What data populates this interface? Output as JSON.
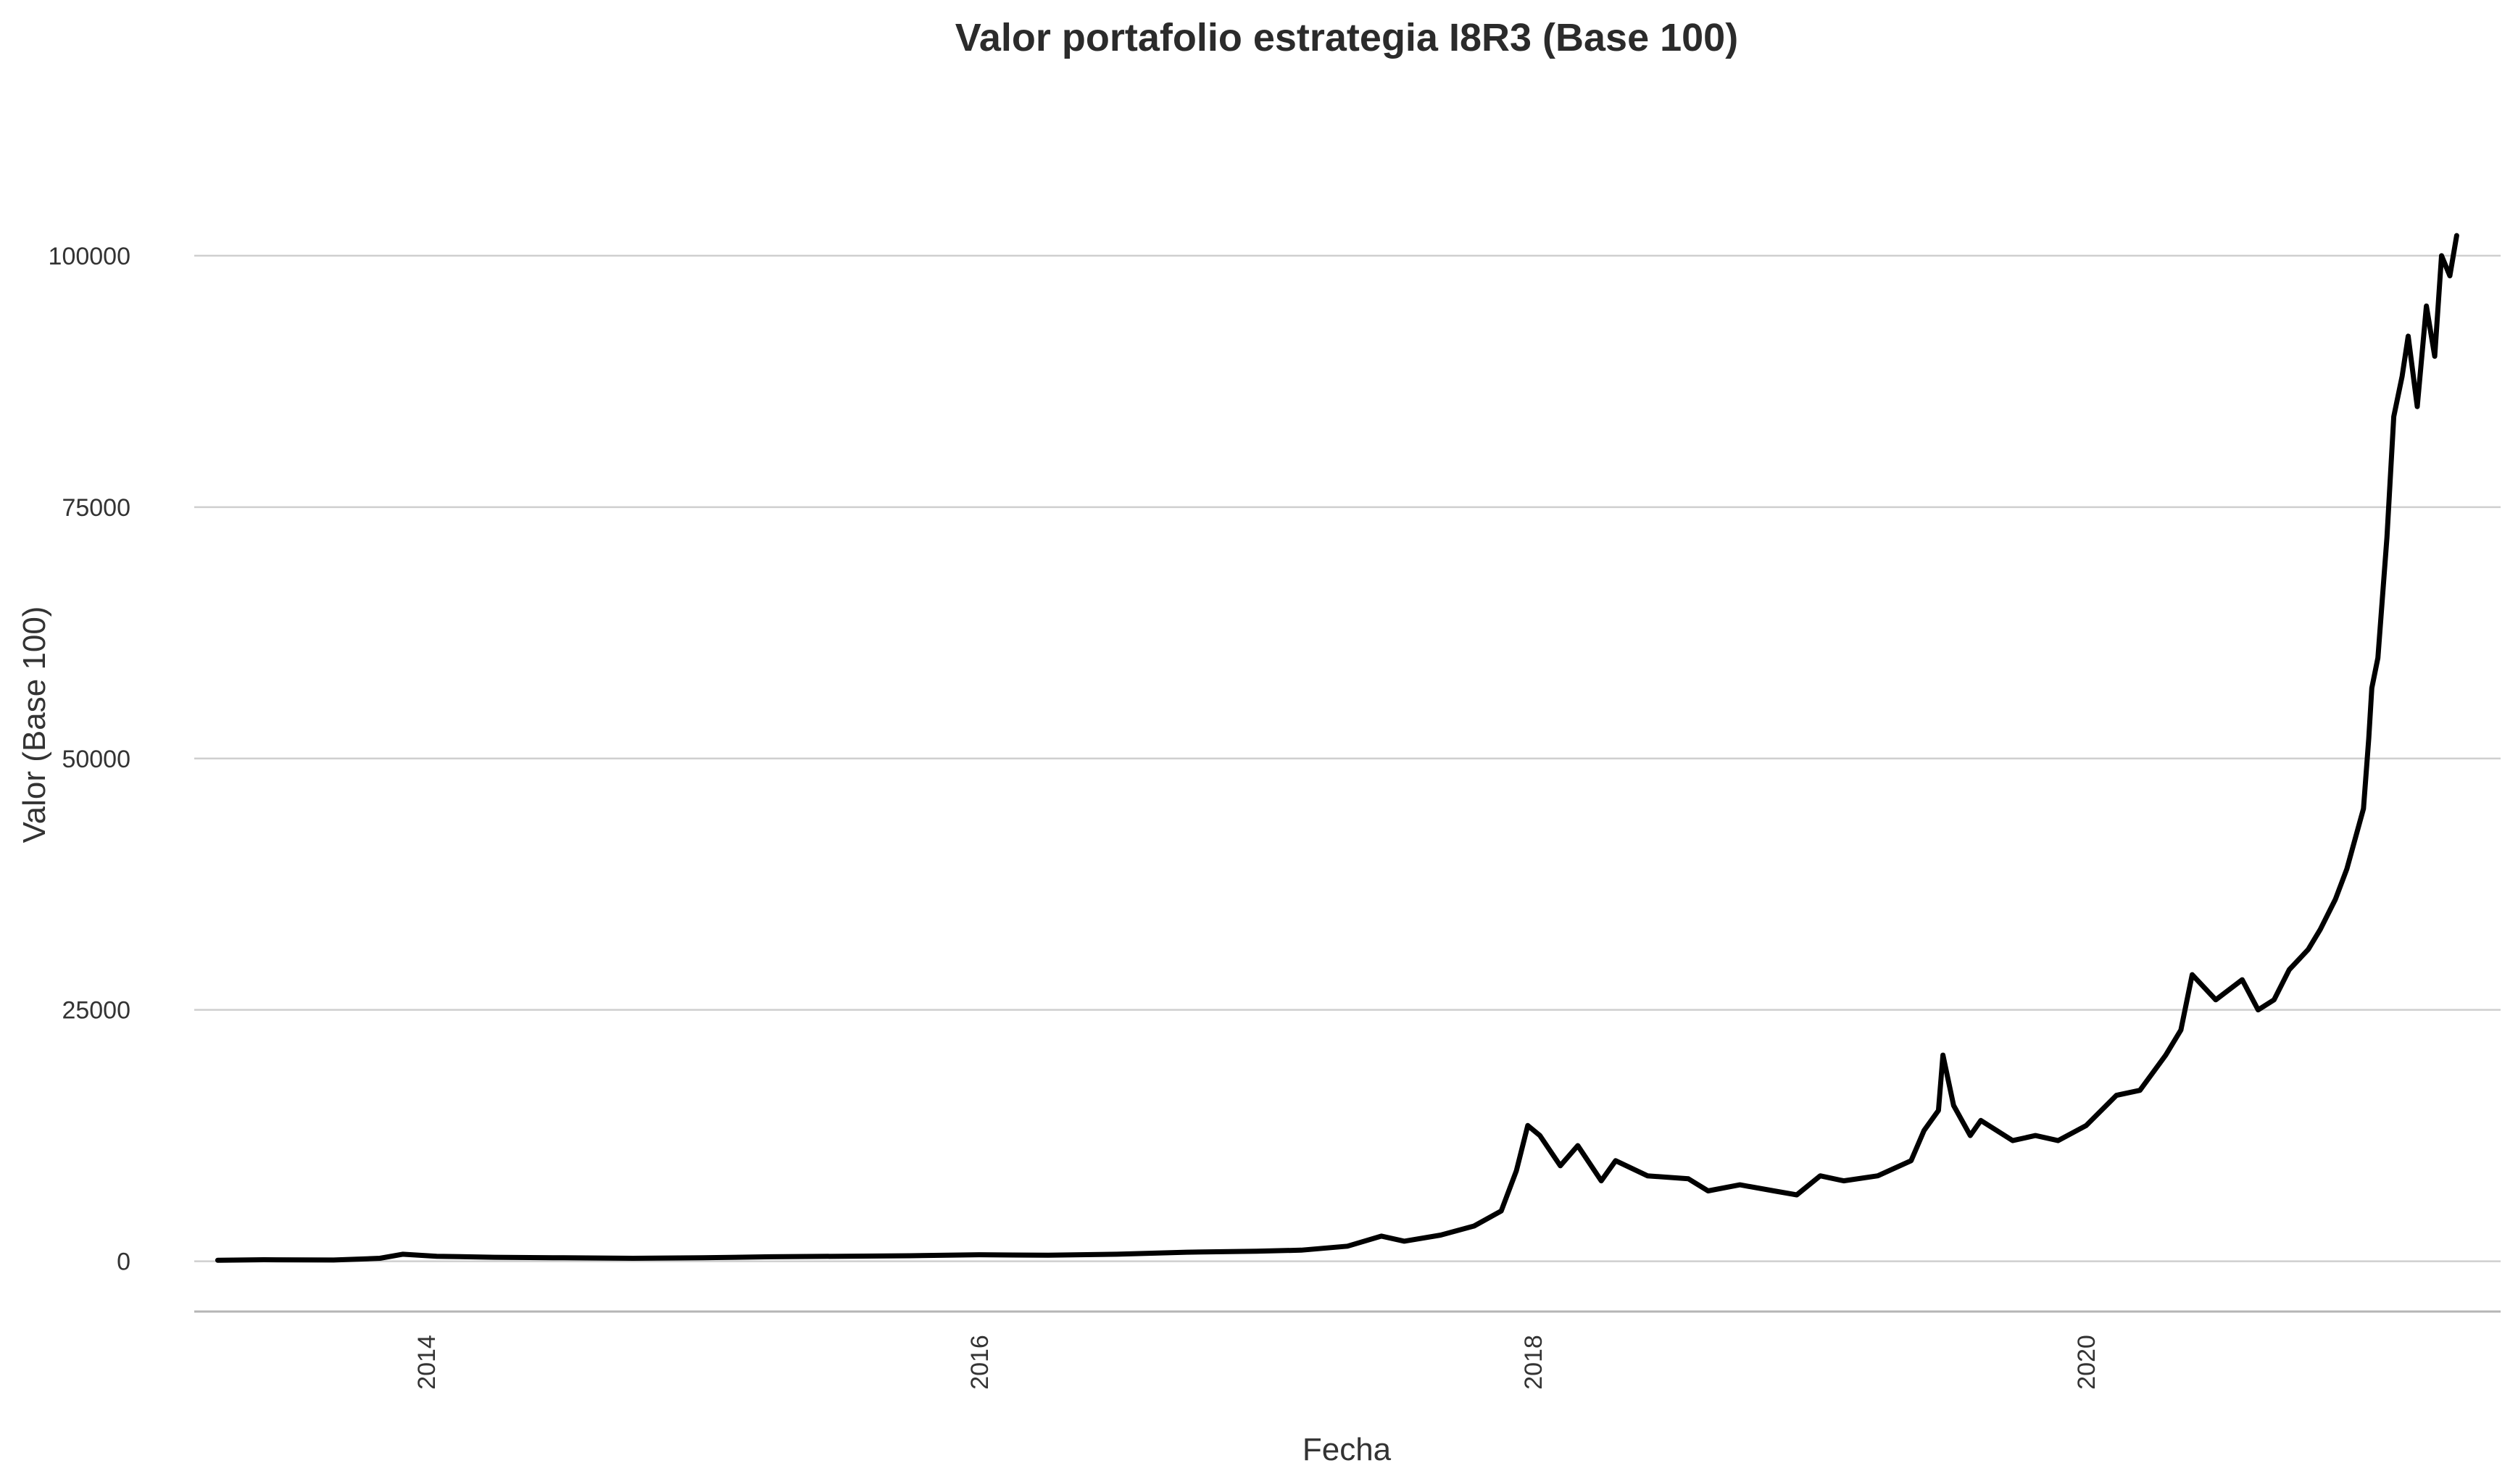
{
  "chart_data": {
    "type": "line",
    "title": "Valor portafolio estrategia I8R3 (Base 100)",
    "xlabel": "Fecha",
    "ylabel": "Valor (Base 100)",
    "xlim": [
      "2013-03-01",
      "2021-07-01"
    ],
    "ylim": [
      -5000,
      109000
    ],
    "y_ticks": [
      0,
      25000,
      50000,
      75000,
      100000
    ],
    "y_tick_labels": [
      "0",
      "25000",
      "50000",
      "75000",
      "100000"
    ],
    "x_ticks": [
      "2014-01-01",
      "2016-01-01",
      "2018-01-01",
      "2020-01-01"
    ],
    "x_tick_labels": [
      "2014",
      "2016",
      "2018",
      "2020"
    ],
    "grid": "horizontal major",
    "legend": "none",
    "series": [
      {
        "color": "#000000",
        "x": [
          "2013-04-01",
          "2013-06-01",
          "2013-09-01",
          "2013-11-01",
          "2013-12-01",
          "2014-01-15",
          "2014-04-01",
          "2014-07-01",
          "2014-10-01",
          "2015-01-01",
          "2015-04-01",
          "2015-07-01",
          "2015-10-01",
          "2016-01-01",
          "2016-04-01",
          "2016-07-01",
          "2016-10-01",
          "2017-01-01",
          "2017-03-01",
          "2017-05-01",
          "2017-06-15",
          "2017-07-15",
          "2017-09-01",
          "2017-10-15",
          "2017-11-20",
          "2017-12-10",
          "2017-12-25",
          "2018-01-10",
          "2018-02-06",
          "2018-03-01",
          "2018-04-01",
          "2018-04-20",
          "2018-06-01",
          "2018-07-25",
          "2018-08-20",
          "2018-10-01",
          "2018-11-15",
          "2018-12-15",
          "2019-01-15",
          "2019-02-15",
          "2019-04-01",
          "2019-05-15",
          "2019-06-01",
          "2019-06-20",
          "2019-06-26",
          "2019-07-10",
          "2019-08-01",
          "2019-08-15",
          "2019-09-26",
          "2019-10-26",
          "2019-11-25",
          "2020-01-01",
          "2020-02-10",
          "2020-03-12",
          "2020-04-15",
          "2020-05-05",
          "2020-05-20",
          "2020-06-20",
          "2020-07-25",
          "2020-08-15",
          "2020-09-05",
          "2020-09-25",
          "2020-10-20",
          "2020-11-05",
          "2020-11-25",
          "2020-12-10",
          "2021-01-01",
          "2021-01-08",
          "2021-01-12",
          "2021-01-20",
          "2021-02-01",
          "2021-02-10",
          "2021-02-21",
          "2021-03-01",
          "2021-03-13",
          "2021-03-25",
          "2021-04-05",
          "2021-04-14",
          "2021-04-25",
          "2021-05-04"
        ],
        "y": [
          100,
          150,
          120,
          300,
          700,
          500,
          400,
          350,
          300,
          350,
          450,
          500,
          550,
          650,
          600,
          700,
          900,
          1000,
          1100,
          1500,
          2500,
          2000,
          2600,
          3500,
          5000,
          9000,
          13500,
          12500,
          9500,
          11500,
          8000,
          10000,
          8500,
          8200,
          7000,
          7600,
          7000,
          6600,
          8500,
          8000,
          8500,
          10000,
          13000,
          15000,
          20500,
          15500,
          12500,
          14000,
          12000,
          12500,
          12000,
          13500,
          16500,
          17000,
          20500,
          23000,
          28500,
          26000,
          28000,
          25000,
          26000,
          29000,
          31000,
          33000,
          36000,
          39000,
          45000,
          52000,
          57000,
          60000,
          72000,
          84000,
          88000,
          92000,
          85000,
          95000,
          90000,
          100000,
          98000,
          102000
        ]
      }
    ]
  }
}
